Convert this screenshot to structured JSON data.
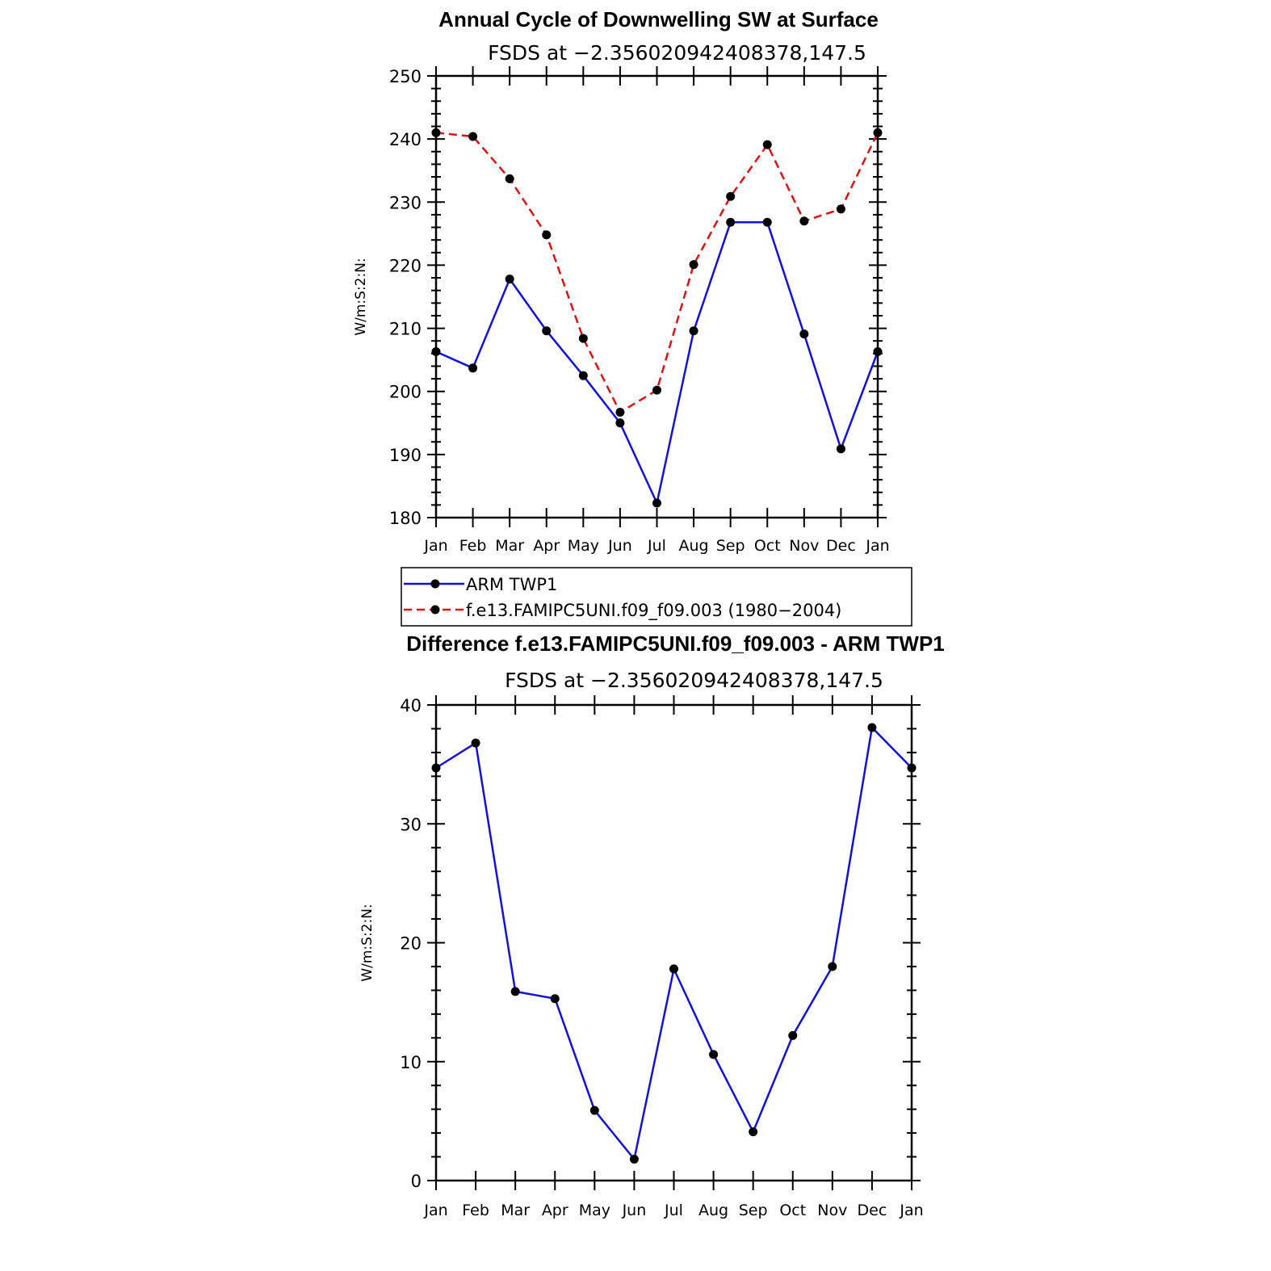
{
  "colors": {
    "obs": "#1010e0",
    "model": "#e01010",
    "marker": "#000000",
    "axis": "#000000"
  },
  "chart_data": [
    {
      "type": "line",
      "title": "Annual Cycle of Downwelling SW at Surface",
      "subtitle": "FSDS at −2.356020942408378,147.5",
      "xlabel": "",
      "ylabel": "W/m:S:2:N:",
      "categories": [
        "Jan",
        "Feb",
        "Mar",
        "Apr",
        "May",
        "Jun",
        "Jul",
        "Aug",
        "Sep",
        "Oct",
        "Nov",
        "Dec",
        "Jan"
      ],
      "ylim": [
        180,
        250
      ],
      "yticks": [
        180,
        190,
        200,
        210,
        220,
        230,
        240,
        250
      ],
      "grid": false,
      "series": [
        {
          "name": "ARM  TWP1",
          "style": "solid",
          "color": "#1010e0",
          "values": [
            206.3,
            203.7,
            217.8,
            209.6,
            202.5,
            195.0,
            182.3,
            209.6,
            226.8,
            226.8,
            209.1,
            190.9,
            206.3
          ]
        },
        {
          "name": "f.e13.FAMIPC5UNI.f09_f09.003 (1980−2004)",
          "style": "dashed",
          "color": "#e01010",
          "values": [
            241.0,
            240.4,
            233.7,
            224.8,
            208.4,
            196.7,
            200.2,
            220.1,
            230.9,
            239.1,
            227.0,
            228.9,
            241.0
          ]
        }
      ]
    },
    {
      "type": "line",
      "title": "Difference f.e13.FAMIPC5UNI.f09_f09.003 - ARM TWP1",
      "subtitle": "FSDS at −2.356020942408378,147.5",
      "xlabel": "",
      "ylabel": "W/m:S:2:N:",
      "categories": [
        "Jan",
        "Feb",
        "Mar",
        "Apr",
        "May",
        "Jun",
        "Jul",
        "Aug",
        "Sep",
        "Oct",
        "Nov",
        "Dec",
        "Jan"
      ],
      "ylim": [
        0,
        40
      ],
      "yticks": [
        0,
        10,
        20,
        30,
        40
      ],
      "grid": false,
      "series": [
        {
          "style": "solid",
          "color": "#1010e0",
          "values": [
            34.7,
            36.8,
            15.9,
            15.3,
            5.9,
            1.8,
            17.8,
            10.6,
            4.1,
            12.2,
            18.0,
            38.1,
            34.7
          ]
        }
      ]
    }
  ]
}
